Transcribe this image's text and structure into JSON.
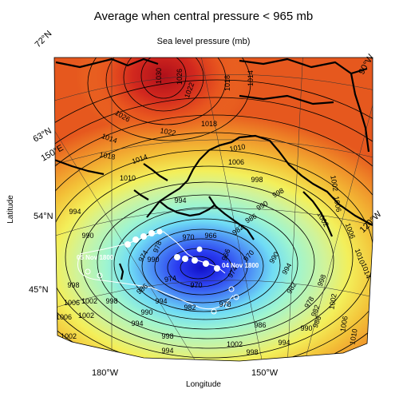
{
  "title": "Average when central pressure < 965 mb",
  "subtitle": "Sea level pressure (mb)",
  "xlabel": "Longitude",
  "ylabel": "Latitude",
  "lat_labels": [
    "72°N",
    "63°N",
    "54°N",
    "45°N"
  ],
  "lon_labels_bottom": [
    "180°W",
    "150°W"
  ],
  "lon_labels_other": [
    "150°E",
    "90°W",
    "120°W"
  ],
  "contour_labels": [
    "1030",
    "1026",
    "1022",
    "1018",
    "1014",
    "1026",
    "1022",
    "1018",
    "1014",
    "1018",
    "1014",
    "1010",
    "1010",
    "1006",
    "1002",
    "1006",
    "998",
    "1002",
    "1006",
    "1010",
    "1014",
    "994",
    "994",
    "990",
    "998",
    "990",
    "986",
    "982",
    "978",
    "974",
    "974",
    "970",
    "970",
    "966",
    "966",
    "970",
    "974",
    "978",
    "982",
    "986",
    "990",
    "994",
    "998",
    "1002",
    "1006",
    "1010",
    "994",
    "990",
    "986",
    "982",
    "978",
    "982",
    "986",
    "990",
    "994",
    "998",
    "1002",
    "998",
    "994",
    "1002",
    "1006",
    "1006",
    "1002",
    "1002",
    "998",
    "998",
    "994",
    "990"
  ],
  "track": {
    "start_label": "05 Nov 1800",
    "end_label": "04 Nov 1800"
  },
  "colors": {
    "high": "#c0201a",
    "mid": "#f0e020",
    "low": "#1010d0",
    "coast": "#000000"
  },
  "chart_data": {
    "type": "heatmap",
    "title": "Average when central pressure < 965 mb",
    "subtitle": "Sea level pressure (mb)",
    "xlabel": "Longitude",
    "ylabel": "Latitude",
    "units": "mb",
    "projection": "polar-stereographic sector",
    "contour_interval": 4,
    "field_range": [
      966,
      1030
    ],
    "center_low": {
      "value": 966,
      "lat": 52,
      "lon": -163
    },
    "center_high": {
      "value": 1030,
      "lat": 70,
      "lon": -170
    },
    "lat_ticks": [
      45,
      54,
      63,
      72
    ],
    "lon_ticks": [
      "150°E",
      "180°W",
      "150°W",
      "120°W",
      "90°W"
    ],
    "track_dates": [
      "05 Nov 1800",
      "04 Nov 1800"
    ]
  }
}
